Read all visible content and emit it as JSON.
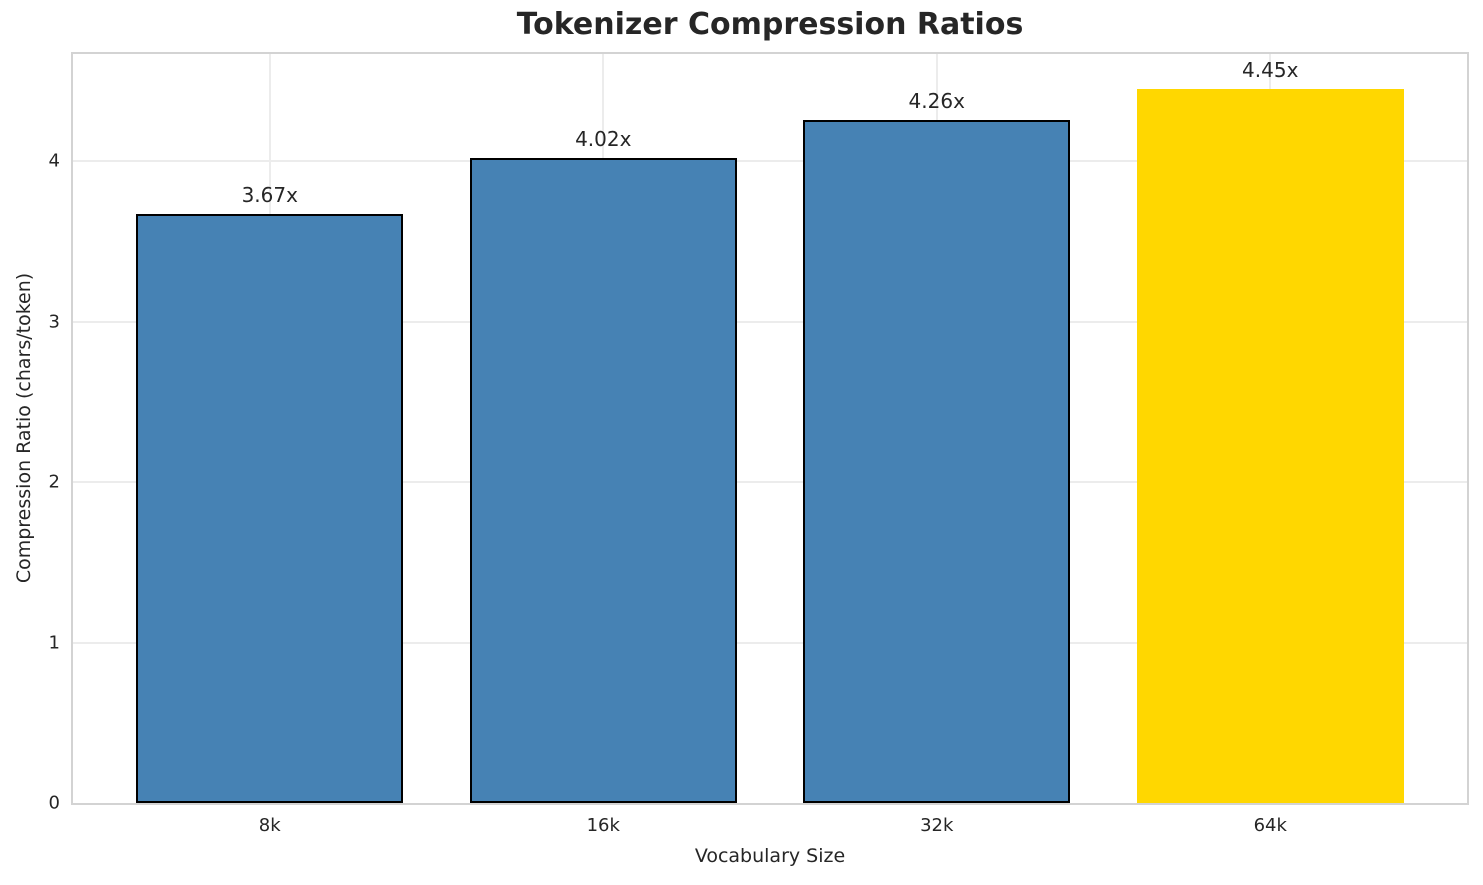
{
  "title": "Tokenizer Compression Ratios",
  "chart_data": {
    "type": "bar",
    "title": "Tokenizer Compression Ratios",
    "xlabel": "Vocabulary Size",
    "ylabel": "Compression Ratio (chars/token)",
    "categories": [
      "8k",
      "16k",
      "32k",
      "64k"
    ],
    "values": [
      3.67,
      4.02,
      4.26,
      4.45
    ],
    "value_labels": [
      "3.67x",
      "4.02x",
      "4.26x",
      "4.45x"
    ],
    "bar_colors": [
      "#4682B4",
      "#4682B4",
      "#4682B4",
      "#FFD700"
    ],
    "bar_edge_colors": [
      "#000000",
      "#000000",
      "#000000",
      "none"
    ],
    "ylim": [
      0,
      4.67
    ],
    "yticks": [
      "0",
      "1",
      "2",
      "3",
      "4"
    ],
    "grid": true,
    "legend": "none",
    "grid_color": "#ececec",
    "spine_color": "#d3d3d3",
    "text_color": "#262626",
    "background_color": "#ffffff"
  }
}
